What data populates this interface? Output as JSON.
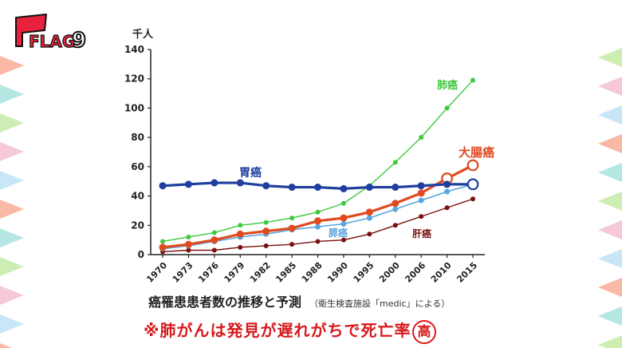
{
  "logo": {
    "text": "FLAG",
    "number": "9"
  },
  "caption": {
    "title": "癌罹患患者数の推移と予測",
    "source": "（衛生検査施設「medic」による）"
  },
  "note": {
    "text": "※肺がんは発見が遅れがちで死亡率",
    "circled": "高"
  },
  "colors": {
    "lung": "#3ec93e",
    "stomach": "#1f3f9f",
    "colorectal": "#e04a1f",
    "pancreas": "#5aa6e0",
    "liver": "#7a1010",
    "bunting": [
      "#f9b9a4",
      "#b4e6e2",
      "#cdeeb3",
      "#f7c8d8",
      "#c8e6f5"
    ]
  },
  "chart_data": {
    "type": "line",
    "ylabel": "千人",
    "ylim": [
      0,
      140
    ],
    "yticks": [
      "0",
      "20",
      "40",
      "60",
      "80",
      "100",
      "120",
      "140"
    ],
    "categories": [
      "1970",
      "1973",
      "1976",
      "1979",
      "1982",
      "1985",
      "1988",
      "1990",
      "1995",
      "2000",
      "2006",
      "2010",
      "2015"
    ],
    "series": [
      {
        "key": "lung",
        "name": "肺癌",
        "values": [
          9,
          12,
          15,
          20,
          22,
          25,
          29,
          35,
          47,
          63,
          80,
          100,
          119
        ]
      },
      {
        "key": "stomach",
        "name": "胃癌",
        "values": [
          47,
          48,
          49,
          49,
          47,
          46,
          46,
          45,
          46,
          46,
          47,
          48,
          48
        ]
      },
      {
        "key": "colorectal",
        "name": "大腸癌",
        "values": [
          5,
          7,
          10,
          14,
          16,
          18,
          23,
          25,
          29,
          35,
          42,
          52,
          61
        ]
      },
      {
        "key": "pancreas",
        "name": "膵癌",
        "values": [
          4,
          6,
          9,
          12,
          14,
          17,
          19,
          21,
          25,
          31,
          37,
          43,
          48
        ]
      },
      {
        "key": "liver",
        "name": "肝癌",
        "values": [
          2,
          3,
          3,
          5,
          6,
          7,
          9,
          10,
          14,
          20,
          26,
          32,
          38
        ]
      }
    ]
  }
}
